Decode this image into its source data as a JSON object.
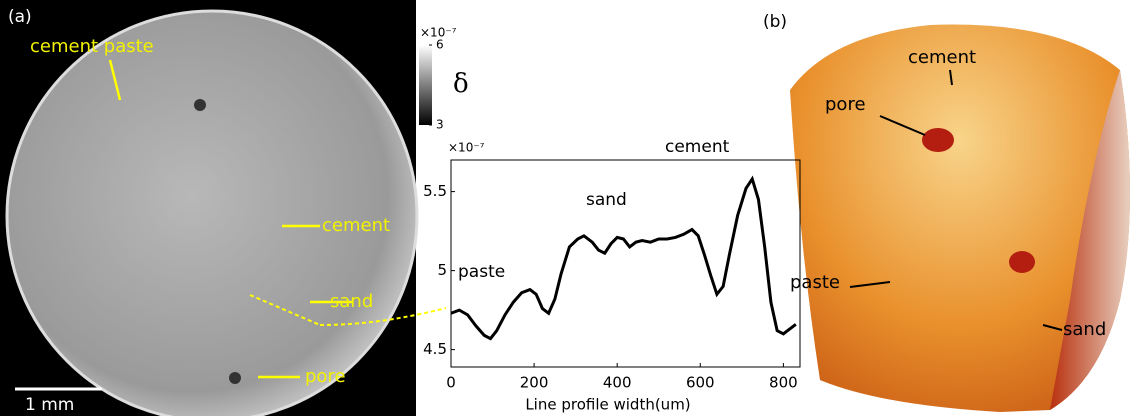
{
  "panel_a": {
    "label": "(a)",
    "annotations": [
      "cement paste",
      "cement",
      "sand",
      "pore"
    ],
    "scale_bar": "1 mm",
    "colorbar": {
      "label": "δ",
      "exponent": "×10⁻⁷",
      "lim": [
        3,
        6
      ],
      "ticks": [
        3,
        6
      ]
    }
  },
  "chart_data": {
    "type": "line",
    "x_label": "Line profile width(um)",
    "y_exponent": "×10⁻⁷",
    "annotations": [
      "paste",
      "sand",
      "cement"
    ],
    "color": "#000000",
    "x": [
      0,
      20,
      40,
      60,
      80,
      95,
      110,
      130,
      150,
      170,
      190,
      205,
      220,
      235,
      250,
      265,
      285,
      305,
      320,
      340,
      355,
      370,
      385,
      400,
      415,
      430,
      445,
      460,
      480,
      500,
      520,
      540,
      560,
      580,
      595,
      610,
      625,
      640,
      655,
      670,
      690,
      710,
      725,
      740,
      755,
      770,
      785,
      800,
      815,
      830
    ],
    "values": [
      4.73,
      4.75,
      4.72,
      4.65,
      4.59,
      4.57,
      4.62,
      4.72,
      4.8,
      4.86,
      4.88,
      4.85,
      4.76,
      4.73,
      4.82,
      4.98,
      5.15,
      5.2,
      5.22,
      5.18,
      5.13,
      5.11,
      5.17,
      5.21,
      5.2,
      5.15,
      5.18,
      5.19,
      5.18,
      5.2,
      5.2,
      5.21,
      5.23,
      5.26,
      5.22,
      5.1,
      4.97,
      4.85,
      4.9,
      5.1,
      5.35,
      5.52,
      5.58,
      5.45,
      5.15,
      4.8,
      4.62,
      4.6,
      4.63,
      4.66
    ],
    "xlim": [
      0,
      840
    ],
    "xticks": [
      0,
      200,
      400,
      600,
      800
    ],
    "ylim": [
      4.39,
      5.7
    ],
    "yticks": [
      4.5,
      5,
      5.5
    ]
  },
  "panel_b": {
    "label": "(b)",
    "annotations": [
      "cement",
      "pore",
      "paste",
      "sand"
    ]
  }
}
